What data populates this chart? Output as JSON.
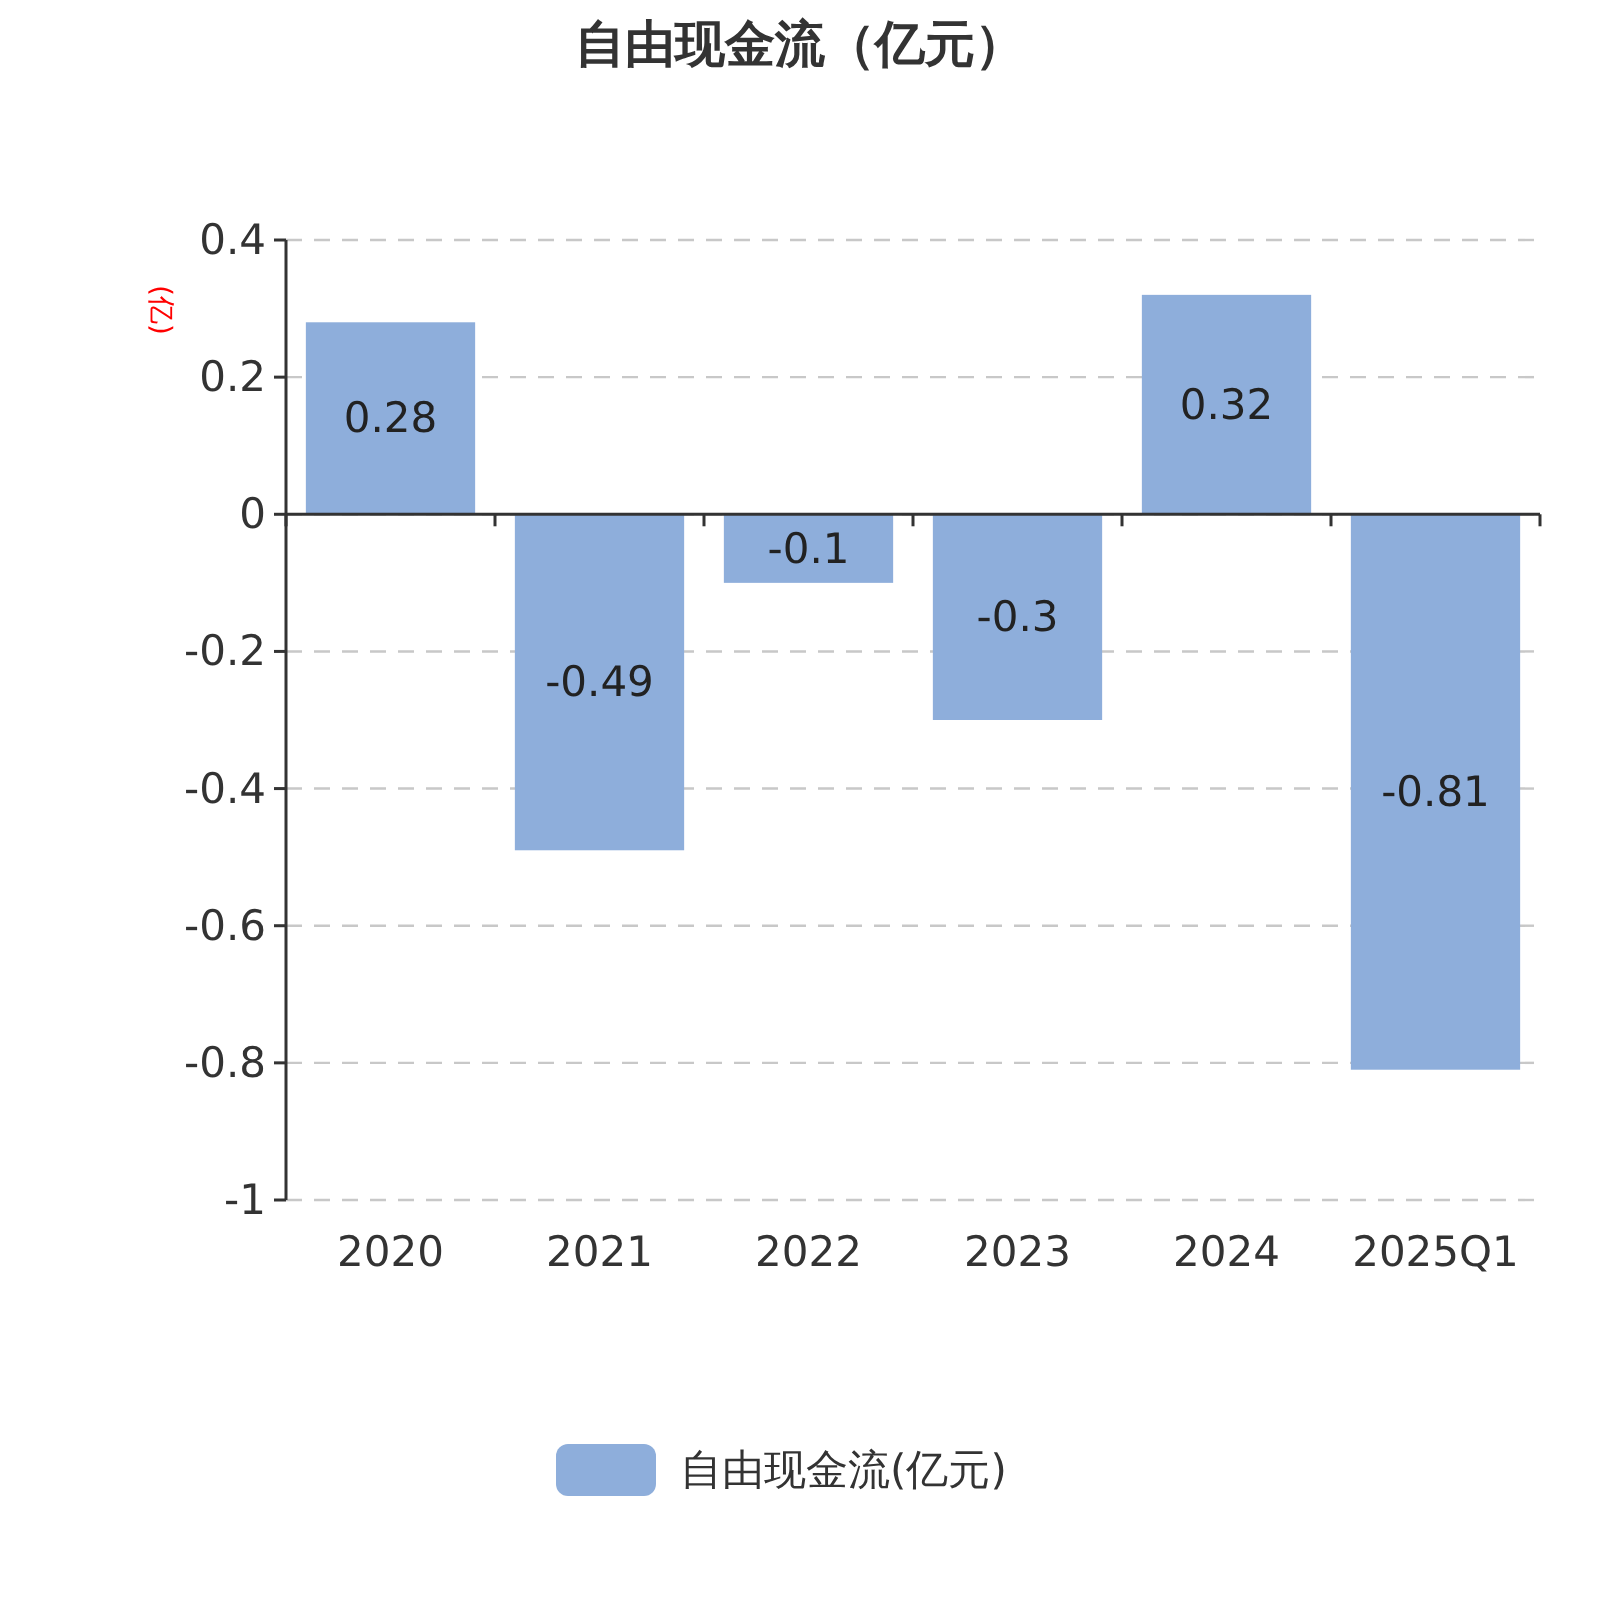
{
  "chart_data": {
    "type": "bar",
    "title": "自由现金流（亿元）",
    "ylabel": "(亿)",
    "categories": [
      "2020",
      "2021",
      "2022",
      "2023",
      "2024",
      "2025Q1"
    ],
    "series": [
      {
        "name": "自由现金流(亿元)",
        "color": "#8eaedb",
        "values": [
          0.28,
          -0.49,
          -0.1,
          -0.3,
          0.32,
          -0.81
        ]
      }
    ],
    "ylim": [
      -1,
      0.4
    ],
    "yticks": [
      0.4,
      0.2,
      0,
      -0.2,
      -0.4,
      -0.6,
      -0.8,
      -1
    ],
    "grid": "y",
    "legend": "bottom",
    "data_labels": true
  }
}
